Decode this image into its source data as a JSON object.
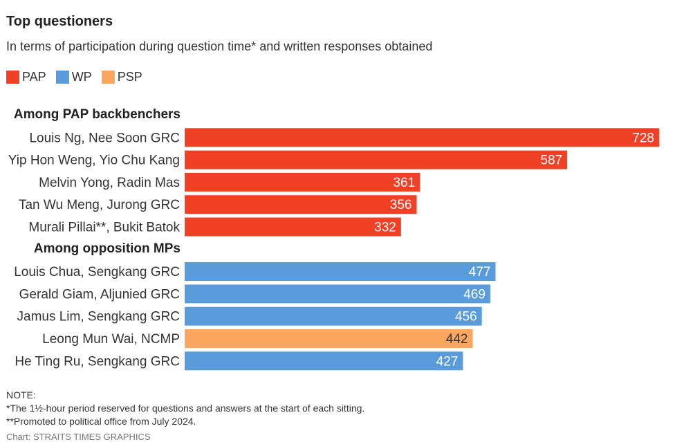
{
  "title": "Top questioners",
  "subtitle": "In terms of participation during question time* and written responses obtained",
  "legend": [
    {
      "label": "PAP",
      "color": "#f04127"
    },
    {
      "label": "WP",
      "color": "#5a9bdc"
    },
    {
      "label": "PSP",
      "color": "#fca660"
    }
  ],
  "chart_data": {
    "type": "bar",
    "orientation": "horizontal",
    "groups": [
      {
        "label": "Among PAP backbenchers",
        "bars": [
          {
            "label": "Louis Ng, Nee Soon GRC",
            "value": 728,
            "party": "PAP"
          },
          {
            "label": "Yip Hon Weng, Yio Chu Kang",
            "value": 587,
            "party": "PAP"
          },
          {
            "label": "Melvin Yong, Radin Mas",
            "value": 361,
            "party": "PAP"
          },
          {
            "label": "Tan Wu Meng, Jurong GRC",
            "value": 356,
            "party": "PAP"
          },
          {
            "label": "Murali Pillai**, Bukit Batok",
            "value": 332,
            "party": "PAP"
          }
        ]
      },
      {
        "label": "Among opposition MPs",
        "bars": [
          {
            "label": "Louis Chua, Sengkang GRC",
            "value": 477,
            "party": "WP"
          },
          {
            "label": "Gerald Giam, Aljunied GRC",
            "value": 469,
            "party": "WP"
          },
          {
            "label": "Jamus Lim, Sengkang GRC",
            "value": 456,
            "party": "WP"
          },
          {
            "label": "Leong Mun Wai, NCMP",
            "value": 442,
            "party": "PSP"
          },
          {
            "label": "He Ting Ru, Sengkang GRC",
            "value": 427,
            "party": "WP"
          }
        ]
      }
    ],
    "xlim": [
      0,
      728
    ],
    "grid": false,
    "legend_position": "top-left"
  },
  "notes": {
    "heading": "NOTE:",
    "lines": [
      "*The 1½-hour period reserved for questions and answers at the start of each sitting.",
      "**Promoted to political office from July 2024."
    ]
  },
  "credit": "Chart: STRAITS TIMES GRAPHICS"
}
